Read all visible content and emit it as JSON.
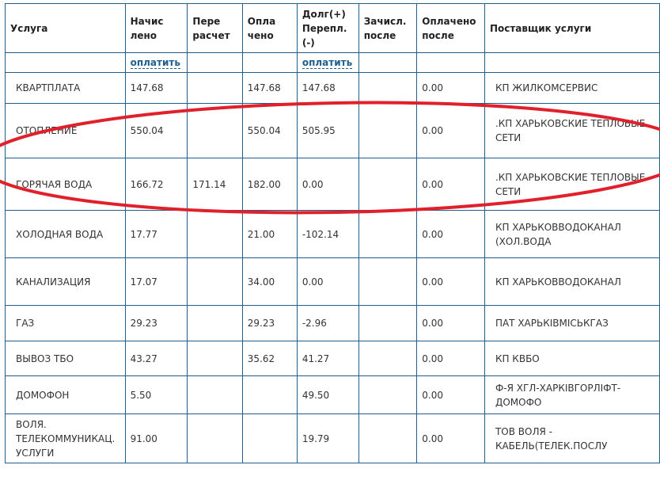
{
  "headers": [
    "Услуга",
    "Начис лено",
    "Пере расчет",
    "Опла чено",
    "Долг(+) Перепл. (-)",
    "Зачисл. после",
    "Оплачено после",
    "Поставщик услуги"
  ],
  "pay_links": {
    "charged": "оплатить",
    "debt": "оплатить"
  },
  "rows": [
    [
      "КВАРТПЛАТА",
      "147.68",
      "",
      "147.68",
      "147.68",
      "",
      "0.00",
      "КП ЖИЛКОМСЕРВИС"
    ],
    [
      "ОТОПЛЕНИЕ",
      "550.04",
      "",
      "550.04",
      "505.95",
      "",
      "0.00",
      ".КП ХАРЬКОВСКИЕ ТЕПЛОВЫЕ СЕТИ"
    ],
    [
      "ГОРЯЧАЯ ВОДА",
      "166.72",
      "171.14",
      "182.00",
      "0.00",
      "",
      "0.00",
      ".КП ХАРЬКОВСКИЕ ТЕПЛОВЫЕ СЕТИ"
    ],
    [
      "ХОЛОДНАЯ ВОДА",
      "17.77",
      "",
      "21.00",
      "-102.14",
      "",
      "0.00",
      "КП ХАРЬКОВВОДОКАНАЛ (ХОЛ.ВОДА"
    ],
    [
      "КАНАЛИЗАЦИЯ",
      "17.07",
      "",
      "34.00",
      "0.00",
      "",
      "0.00",
      "КП ХАРЬКОВВОДОКАНАЛ"
    ],
    [
      "ГАЗ",
      "29.23",
      "",
      "29.23",
      "-2.96",
      "",
      "0.00",
      "ПАТ ХАРЬКІВМІСЬКГАЗ"
    ],
    [
      "ВЫВОЗ ТБО",
      "43.27",
      "",
      "35.62",
      "41.27",
      "",
      "0.00",
      "КП КВБО"
    ],
    [
      "ДОМОФОН",
      "5.50",
      "",
      "",
      "49.50",
      "",
      "0.00",
      "Ф-Я ХГЛ-ХАРКІВГОРЛІФТ-ДОМОФО"
    ],
    [
      "ВОЛЯ. ТЕЛЕКОММУНИКАЦ. УСЛУГИ",
      "91.00",
      "",
      "",
      "19.79",
      "",
      "0.00",
      "ТОВ ВОЛЯ - КАБЕЛЬ(ТЕЛЕК.ПОСЛУ"
    ]
  ],
  "annotation_color": "#e0202a"
}
